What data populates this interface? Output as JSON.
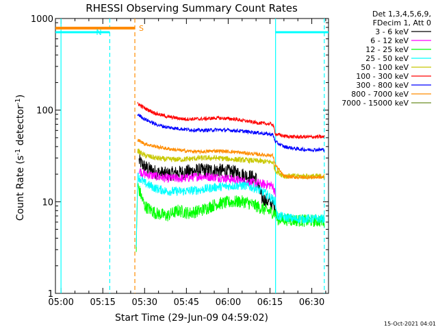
{
  "chart_data": {
    "type": "line",
    "title": "RHESSI Observing Summary Count Rates",
    "xlabel": "Start Time (29-Jun-09 04:59:02)",
    "ylabel_main": "Count Rate (s",
    "ylabel_sup1": "-1",
    "ylabel_mid": " detector",
    "ylabel_sup2": "-1",
    "ylabel_end": ")",
    "yscale": "log",
    "ylim": [
      1,
      1000
    ],
    "xlim_minutes": [
      -2,
      96
    ],
    "xticks": [
      {
        "label": "05:00",
        "minutes": 0
      },
      {
        "label": "05:15",
        "minutes": 15
      },
      {
        "label": "05:30",
        "minutes": 30
      },
      {
        "label": "05:45",
        "minutes": 45
      },
      {
        "label": "06:00",
        "minutes": 60
      },
      {
        "label": "06:15",
        "minutes": 75
      },
      {
        "label": "06:30",
        "minutes": 90
      }
    ],
    "yticks": [
      {
        "label": "1",
        "value": 1
      },
      {
        "label": "10",
        "value": 10
      },
      {
        "label": "100",
        "value": 100
      },
      {
        "label": "1000",
        "value": 1000
      }
    ],
    "legend_header": [
      "Det 1,3,4,5,6,9,",
      "FDecim 1, Att 0"
    ],
    "legend_position": "right",
    "timestamp": "15-Oct-2021 04:01",
    "markers": {
      "N": {
        "label": "N",
        "color": "#00ffff",
        "start_min": -2,
        "end_min": 17.5
      },
      "S": {
        "label": "S",
        "color": "#ff8c00",
        "start_min": -2,
        "end_min": 26.5
      },
      "N2": {
        "color": "#00ffff",
        "start_min": 77,
        "end_min": 96
      }
    },
    "vlines": [
      {
        "minutes": 0,
        "color": "#00ffff",
        "dash": false
      },
      {
        "minutes": 17.5,
        "color": "#00ffff",
        "dash": true
      },
      {
        "minutes": 26.5,
        "color": "#ff8c00",
        "dash": true
      },
      {
        "minutes": 77,
        "color": "#00ffff",
        "dash": false
      },
      {
        "minutes": 94.5,
        "color": "#00ffff",
        "dash": true
      }
    ],
    "series": [
      {
        "name": "3 - 6 keV",
        "color": "#000000",
        "noise": 0.08,
        "points": [
          [
            28,
            28
          ],
          [
            30,
            24
          ],
          [
            34,
            21
          ],
          [
            38,
            20
          ],
          [
            44,
            21
          ],
          [
            50,
            22
          ],
          [
            56,
            22
          ],
          [
            62,
            21
          ],
          [
            70,
            18
          ],
          [
            72,
            11
          ],
          [
            76,
            9.5
          ],
          [
            77,
            8.5
          ]
        ]
      },
      {
        "name": "6 - 12 keV",
        "color": "#ff00ff",
        "noise": 0.05,
        "points": [
          [
            28,
            22
          ],
          [
            30,
            20
          ],
          [
            34,
            19
          ],
          [
            38,
            18
          ],
          [
            44,
            18
          ],
          [
            50,
            19
          ],
          [
            56,
            18.5
          ],
          [
            62,
            17.5
          ],
          [
            70,
            16
          ],
          [
            76,
            15
          ],
          [
            77,
            12
          ]
        ]
      },
      {
        "name": "12 - 25 keV",
        "color": "#00ff00",
        "noise": 0.07,
        "points": [
          [
            27,
            3
          ],
          [
            27.5,
            15
          ],
          [
            30,
            9
          ],
          [
            34,
            7.5
          ],
          [
            38,
            7
          ],
          [
            42,
            8
          ],
          [
            46,
            7.5
          ],
          [
            50,
            8
          ],
          [
            56,
            9.5
          ],
          [
            62,
            10
          ],
          [
            66,
            10
          ],
          [
            70,
            9
          ],
          [
            74,
            8
          ],
          [
            77,
            7.5
          ],
          [
            77.5,
            6.5
          ],
          [
            84,
            6.3
          ],
          [
            88,
            6.2
          ],
          [
            94.5,
            6.2
          ]
        ]
      },
      {
        "name": "25 - 50 keV",
        "color": "#00ffff",
        "noise": 0.05,
        "points": [
          [
            27,
            3.5
          ],
          [
            27.5,
            19
          ],
          [
            30,
            16
          ],
          [
            34,
            14
          ],
          [
            38,
            13
          ],
          [
            44,
            13
          ],
          [
            50,
            13.5
          ],
          [
            56,
            14.5
          ],
          [
            62,
            15
          ],
          [
            66,
            15
          ],
          [
            70,
            14
          ],
          [
            74,
            12
          ],
          [
            77,
            10
          ],
          [
            77.5,
            7
          ],
          [
            84,
            6.5
          ],
          [
            88,
            6.5
          ],
          [
            94.5,
            6.5
          ]
        ]
      },
      {
        "name": "50 - 100 keV",
        "color": "#c8c800",
        "noise": 0.03,
        "points": [
          [
            27.5,
            36
          ],
          [
            30,
            32
          ],
          [
            34,
            30
          ],
          [
            38,
            29
          ],
          [
            44,
            29
          ],
          [
            50,
            30
          ],
          [
            56,
            30
          ],
          [
            62,
            29
          ],
          [
            70,
            28
          ],
          [
            76,
            27
          ],
          [
            77,
            22
          ],
          [
            80,
            19
          ],
          [
            84,
            19
          ],
          [
            88,
            19
          ],
          [
            94.5,
            19
          ]
        ]
      },
      {
        "name": "100 - 300 keV",
        "color": "#ff0000",
        "noise": 0.02,
        "points": [
          [
            27.5,
            118
          ],
          [
            30,
            105
          ],
          [
            34,
            92
          ],
          [
            38,
            85
          ],
          [
            44,
            80
          ],
          [
            50,
            80
          ],
          [
            56,
            82
          ],
          [
            62,
            80
          ],
          [
            70,
            73
          ],
          [
            76,
            70
          ],
          [
            77,
            55
          ],
          [
            80,
            52
          ],
          [
            84,
            51
          ],
          [
            88,
            51
          ],
          [
            94.5,
            51
          ]
        ]
      },
      {
        "name": "300 - 800 keV",
        "color": "#0000ff",
        "noise": 0.02,
        "points": [
          [
            27.5,
            90
          ],
          [
            30,
            80
          ],
          [
            34,
            70
          ],
          [
            38,
            65
          ],
          [
            44,
            62
          ],
          [
            50,
            60
          ],
          [
            56,
            61
          ],
          [
            62,
            60
          ],
          [
            70,
            57
          ],
          [
            76,
            54
          ],
          [
            77,
            45
          ],
          [
            80,
            40
          ],
          [
            84,
            38
          ],
          [
            88,
            37
          ],
          [
            94.5,
            37
          ]
        ]
      },
      {
        "name": "800 - 7000 keV",
        "color": "#ff8c00",
        "noise": 0.02,
        "points": [
          [
            27.5,
            47
          ],
          [
            30,
            43
          ],
          [
            34,
            40
          ],
          [
            38,
            38
          ],
          [
            44,
            36
          ],
          [
            50,
            35
          ],
          [
            56,
            36
          ],
          [
            62,
            35
          ],
          [
            70,
            33
          ],
          [
            76,
            32
          ],
          [
            77,
            25
          ],
          [
            80,
            19
          ],
          [
            84,
            18.5
          ],
          [
            88,
            18.5
          ],
          [
            94.5,
            18.5
          ]
        ]
      },
      {
        "name": "7000 - 15000 keV",
        "color": "#6b8e23",
        "noise": 0.0,
        "points": []
      }
    ]
  }
}
